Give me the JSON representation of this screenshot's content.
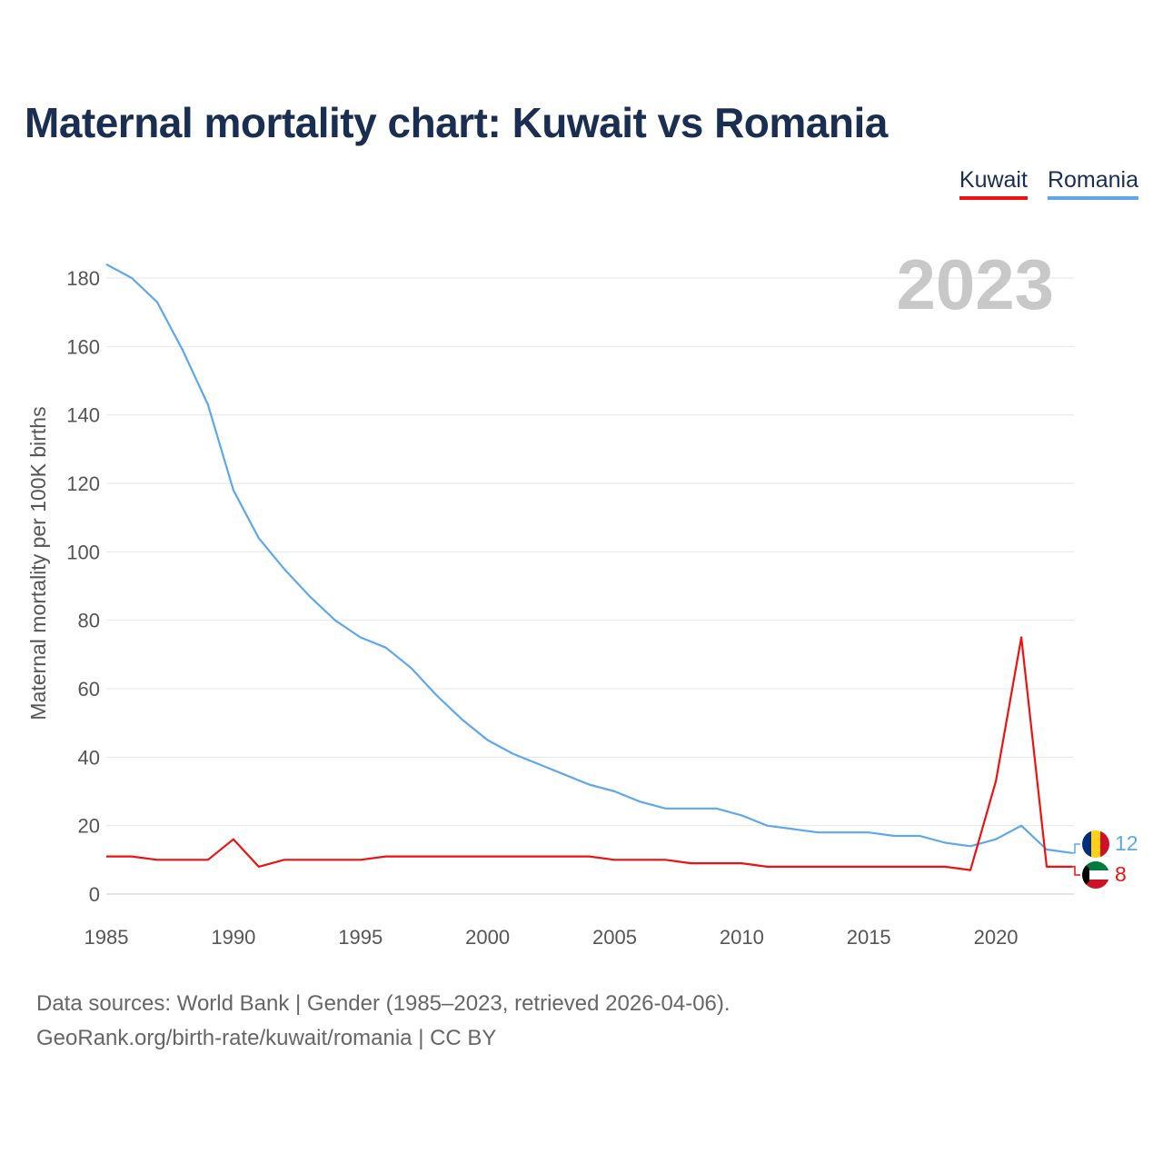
{
  "title": "Maternal mortality chart: Kuwait vs Romania",
  "legend": {
    "kuwait": "Kuwait",
    "romania": "Romania"
  },
  "footer": {
    "line1": "Data sources: World Bank | Gender (1985–2023, retrieved 2026-04-06).",
    "line2": "GeoRank.org/birth-rate/kuwait/romania | CC BY"
  },
  "colors": {
    "kuwait": "#ee1111",
    "romania": "#5ea8ea",
    "grid": "#e6e6e6",
    "year": "#c8c8c8"
  },
  "chart_data": {
    "type": "line",
    "title": "Maternal mortality chart: Kuwait vs Romania",
    "ylabel": "Maternal mortality per 100K births",
    "xlabel": "",
    "year_label": "2023",
    "xlim": [
      1985,
      2023
    ],
    "ylim": [
      0,
      185
    ],
    "yticks": [
      0,
      20,
      40,
      60,
      80,
      100,
      120,
      140,
      160,
      180
    ],
    "xticks": [
      1985,
      1990,
      1995,
      2000,
      2005,
      2010,
      2015,
      2020
    ],
    "x": [
      1985,
      1986,
      1987,
      1988,
      1989,
      1990,
      1991,
      1992,
      1993,
      1994,
      1995,
      1996,
      1997,
      1998,
      1999,
      2000,
      2001,
      2002,
      2003,
      2004,
      2005,
      2006,
      2007,
      2008,
      2009,
      2010,
      2011,
      2012,
      2013,
      2014,
      2015,
      2016,
      2017,
      2018,
      2019,
      2020,
      2021,
      2022,
      2023
    ],
    "series": [
      {
        "name": "Romania",
        "color": "#5ea8ea",
        "end_label": "12",
        "values": [
          184,
          180,
          173,
          159,
          143,
          118,
          104,
          95,
          87,
          80,
          75,
          72,
          66,
          58,
          51,
          45,
          41,
          38,
          35,
          32,
          30,
          27,
          25,
          25,
          25,
          23,
          20,
          19,
          18,
          18,
          18,
          17,
          17,
          15,
          14,
          16,
          20,
          13,
          12
        ]
      },
      {
        "name": "Kuwait",
        "color": "#ee1111",
        "end_label": "8",
        "values": [
          11,
          11,
          10,
          10,
          10,
          16,
          8,
          10,
          10,
          10,
          10,
          11,
          11,
          11,
          11,
          11,
          11,
          11,
          11,
          11,
          10,
          10,
          10,
          9,
          9,
          9,
          8,
          8,
          8,
          8,
          8,
          8,
          8,
          8,
          7,
          33,
          75,
          8,
          8
        ]
      }
    ]
  }
}
